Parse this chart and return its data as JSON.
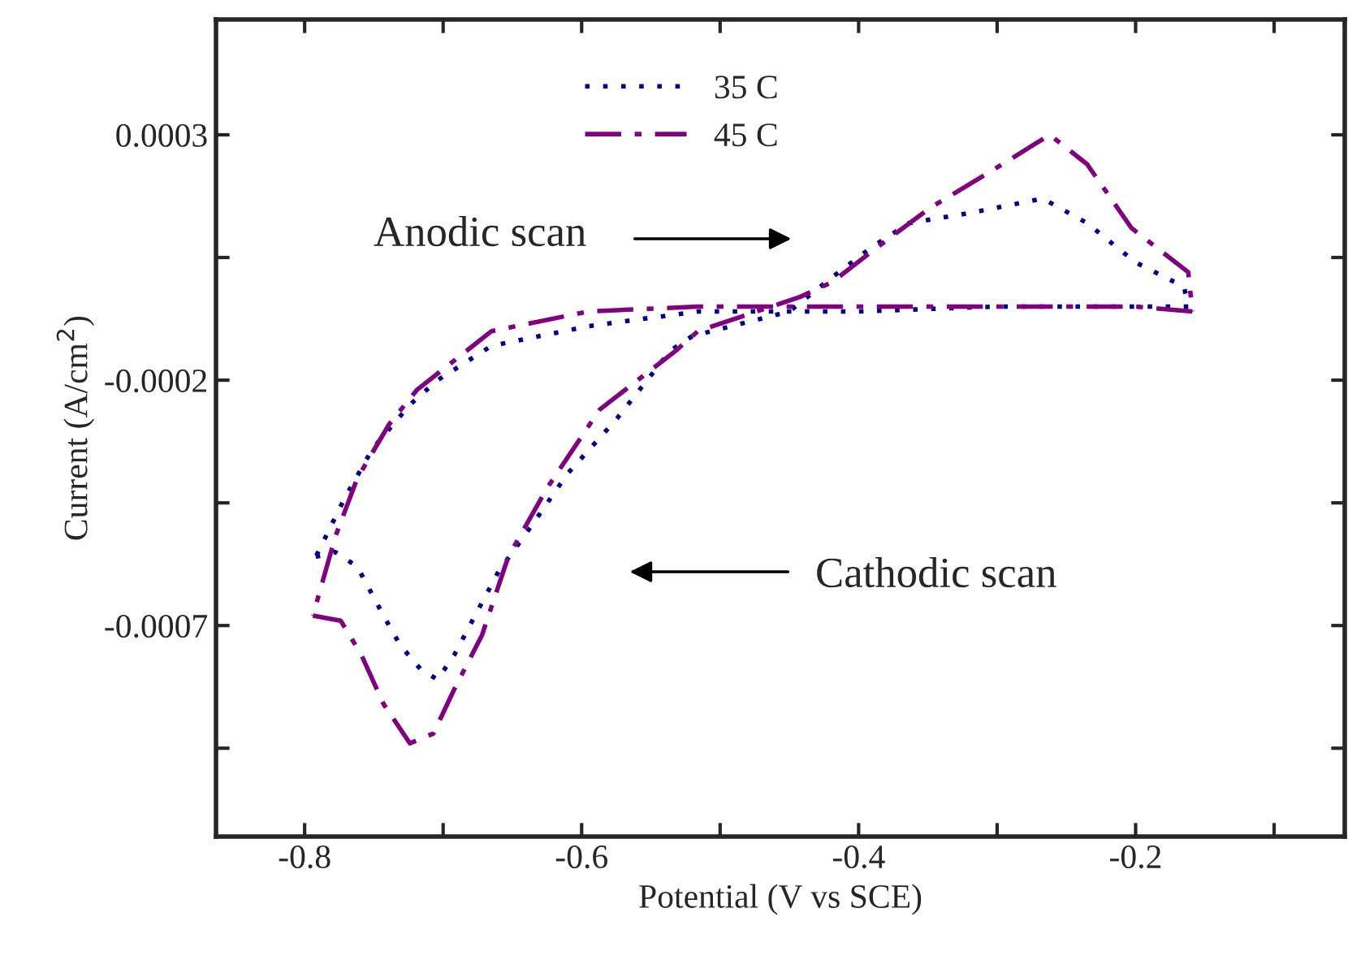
{
  "chart_data": {
    "type": "line",
    "xlabel": "Potential (V vs SCE)",
    "ylabel": "Current (A/cm$^{2}$)",
    "xlim": [
      -0.864,
      -0.049
    ],
    "ylim": [
      -0.00113,
      0.000535
    ],
    "xticks": [
      -0.8,
      {
        "value": -0.7,
        "label": null
      },
      -0.6,
      {
        "value": -0.5,
        "label": null
      },
      -0.4,
      {
        "value": -0.3,
        "label": null
      },
      -0.2,
      {
        "value": -0.1,
        "label": null
      }
    ],
    "yticks": [
      -0.0007,
      {
        "value": -0.00095,
        "label": null
      },
      {
        "value": -0.00045,
        "label": null
      },
      -0.0002,
      {
        "value": 5e-05,
        "label": null
      },
      0.0003
    ],
    "legend": "top",
    "grid": false,
    "annotations": [
      "Anodic scan",
      "Cathodic scan"
    ],
    "series": [
      {
        "name": "35 C",
        "color": "#00008b",
        "line_style": "dotted",
        "x": [
          -0.162,
          -0.2,
          -0.3,
          -0.4,
          -0.45,
          -0.516,
          -0.595,
          -0.665,
          -0.704,
          -0.724,
          -0.751,
          -0.771,
          -0.792
        ],
        "values": [
          -5e-05,
          -5e-05,
          -5e-05,
          -6e-05,
          -6e-05,
          -6e-05,
          -9e-05,
          -0.00013,
          -0.0002,
          -0.00025,
          -0.00034,
          -0.00044,
          -0.00056
        ]
      },
      {
        "color": "#00008b",
        "line_style": "dotted",
        "x": [
          -0.792,
          -0.778,
          -0.762,
          -0.743,
          -0.731,
          -0.716,
          -0.704,
          -0.692,
          -0.677,
          -0.66,
          -0.637,
          -0.61,
          -0.575,
          -0.536,
          -0.52,
          -0.45,
          -0.419,
          -0.391,
          -0.364,
          -0.321,
          -0.267,
          -0.235,
          -0.2,
          -0.165,
          -0.162
        ],
        "values": [
          -0.00056,
          -0.00055,
          -0.00058,
          -0.00068,
          -0.00074,
          -0.00079,
          -0.00081,
          -0.00076,
          -0.00068,
          -0.00059,
          -0.0005,
          -0.00039,
          -0.00028,
          -0.00014,
          -0.00011,
          -6e-05,
          1e-05,
          7e-05,
          0.00012,
          0.00014,
          0.00017,
          0.00012,
          4e-05,
          -1e-05,
          -5e-05
        ]
      },
      {
        "name": "45 C",
        "color": "#800080",
        "line_style": "dashdot",
        "x": [
          -0.159,
          -0.2,
          -0.3,
          -0.4,
          -0.45,
          -0.516,
          -0.595,
          -0.665,
          -0.719,
          -0.739,
          -0.762,
          -0.778,
          -0.794
        ],
        "values": [
          -6e-05,
          -5e-05,
          -5e-05,
          -5e-05,
          -5e-05,
          -5e-05,
          -6e-05,
          -0.0001,
          -0.00022,
          -0.00029,
          -0.0004,
          -0.00052,
          -0.00068
        ]
      },
      {
        "color": "#800080",
        "line_style": "dashdot",
        "x": [
          -0.794,
          -0.774,
          -0.759,
          -0.743,
          -0.724,
          -0.707,
          -0.692,
          -0.672,
          -0.653,
          -0.625,
          -0.587,
          -0.532,
          -0.516,
          -0.442,
          -0.419,
          -0.387,
          -0.349,
          -0.302,
          -0.262,
          -0.235,
          -0.203,
          -0.162,
          -0.159
        ],
        "values": [
          -0.00068,
          -0.00069,
          -0.00076,
          -0.00086,
          -0.00094,
          -0.00092,
          -0.00083,
          -0.00072,
          -0.00056,
          -0.00042,
          -0.00026,
          -0.00014,
          -0.0001,
          -3e-05,
          0,
          7e-05,
          0.00015,
          0.00023,
          0.0003,
          0.00024,
          0.00011,
          2e-05,
          -6e-05
        ]
      }
    ]
  }
}
